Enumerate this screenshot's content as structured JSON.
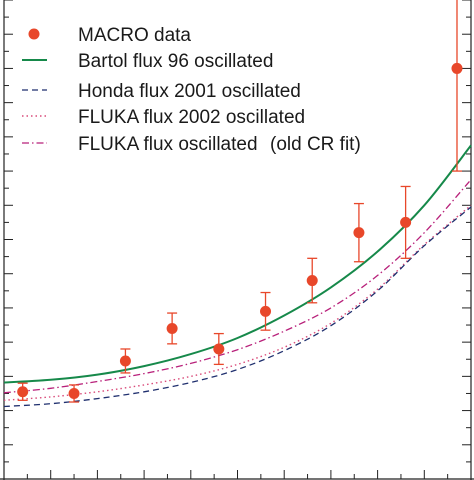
{
  "chart_data": {
    "type": "line",
    "xlim": [
      0,
      10
    ],
    "ylim": [
      0,
      14
    ],
    "grid": false,
    "legend_position": "top-left",
    "colors": {
      "data": "#e8472a",
      "bartol": "#16894a",
      "honda": "#1f2f6e",
      "fluka2002": "#d94b7a",
      "fluka_old": "#b8207a"
    },
    "legend": {
      "data": "MACRO data",
      "bartol": "Bartol flux 96 oscillated",
      "honda": "Honda flux 2001 oscillated",
      "fluka2002": "FLUKA flux 2002 oscillated",
      "fluka_old": "FLUKA flux oscillated",
      "fluka_old_note": "(old CR fit)"
    },
    "data_points": [
      {
        "x": 0.4,
        "y": 2.55,
        "err": 0.25
      },
      {
        "x": 1.5,
        "y": 2.5,
        "err": 0.25
      },
      {
        "x": 2.6,
        "y": 3.45,
        "err": 0.35
      },
      {
        "x": 3.6,
        "y": 4.4,
        "err": 0.45
      },
      {
        "x": 4.6,
        "y": 3.8,
        "err": 0.45
      },
      {
        "x": 5.6,
        "y": 4.9,
        "err": 0.55
      },
      {
        "x": 6.6,
        "y": 5.8,
        "err": 0.65
      },
      {
        "x": 7.6,
        "y": 7.2,
        "err": 0.85
      },
      {
        "x": 8.6,
        "y": 7.5,
        "err": 1.05
      },
      {
        "x": 9.7,
        "y": 12.0,
        "err": 3.0
      }
    ],
    "series": [
      {
        "key": "bartol",
        "style": "solid",
        "x": [
          0,
          1,
          2,
          3,
          4,
          5,
          6,
          7,
          8,
          9,
          10
        ],
        "y": [
          2.82,
          2.9,
          3.05,
          3.3,
          3.65,
          4.12,
          4.78,
          5.6,
          6.65,
          8.0,
          9.75
        ]
      },
      {
        "key": "fluka_old",
        "style": "dashdot",
        "x": [
          0,
          1,
          2,
          3,
          4,
          5,
          6,
          7,
          8,
          9,
          10
        ],
        "y": [
          2.52,
          2.65,
          2.85,
          3.08,
          3.38,
          3.78,
          4.32,
          5.0,
          5.95,
          7.2,
          8.75
        ]
      },
      {
        "key": "fluka2002",
        "style": "dotted",
        "x": [
          0,
          1,
          2,
          3,
          4,
          5,
          6,
          7,
          8,
          9,
          10
        ],
        "y": [
          2.3,
          2.4,
          2.55,
          2.75,
          3.0,
          3.35,
          3.85,
          4.55,
          5.55,
          6.85,
          8.0
        ]
      },
      {
        "key": "honda",
        "style": "dashed",
        "x": [
          0,
          1,
          2,
          3,
          4,
          5,
          6,
          7,
          8,
          9,
          10
        ],
        "y": [
          2.12,
          2.2,
          2.35,
          2.55,
          2.82,
          3.2,
          3.75,
          4.48,
          5.5,
          6.82,
          7.95
        ]
      }
    ]
  }
}
